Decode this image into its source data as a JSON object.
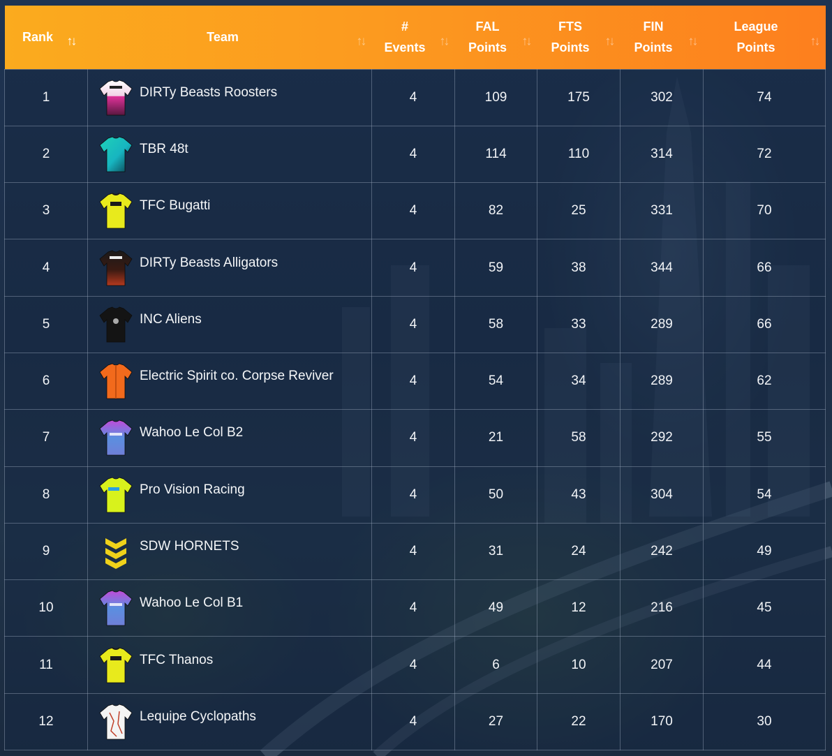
{
  "headers": {
    "rank": "Rank",
    "team": "Team",
    "events_1": "#",
    "events_2": "Events",
    "fal_1": "FAL",
    "fal_2": "Points",
    "fts_1": "FTS",
    "fts_2": "Points",
    "fin_1": "FIN",
    "fin_2": "Points",
    "league_1": "League",
    "league_2": "Points",
    "sort_glyph": "↑↓"
  },
  "colors": {
    "header_start": "#fbab1e",
    "header_end": "#fd7f1e"
  },
  "rows": [
    {
      "rank": "1",
      "team": "DIRTy Beasts Roosters",
      "events": "4",
      "fal": "109",
      "fts": "175",
      "fin": "302",
      "league": "74",
      "jersey_icon": "jersey-dirty-roosters-icon"
    },
    {
      "rank": "2",
      "team": "TBR 48t",
      "events": "4",
      "fal": "114",
      "fts": "110",
      "fin": "314",
      "league": "72",
      "jersey_icon": "jersey-tbr-icon"
    },
    {
      "rank": "3",
      "team": "TFC Bugatti",
      "events": "4",
      "fal": "82",
      "fts": "25",
      "fin": "331",
      "league": "70",
      "jersey_icon": "jersey-tfc-icon"
    },
    {
      "rank": "4",
      "team": "DIRTy Beasts Alligators",
      "events": "4",
      "fal": "59",
      "fts": "38",
      "fin": "344",
      "league": "66",
      "jersey_icon": "jersey-dirty-alligators-icon"
    },
    {
      "rank": "5",
      "team": "INC Aliens",
      "events": "4",
      "fal": "58",
      "fts": "33",
      "fin": "289",
      "league": "66",
      "jersey_icon": "jersey-inc-icon"
    },
    {
      "rank": "6",
      "team": "Electric Spirit co. Corpse Reviver",
      "events": "4",
      "fal": "54",
      "fts": "34",
      "fin": "289",
      "league": "62",
      "jersey_icon": "jersey-electric-spirit-icon"
    },
    {
      "rank": "7",
      "team": "Wahoo Le Col B2",
      "events": "4",
      "fal": "21",
      "fts": "58",
      "fin": "292",
      "league": "55",
      "jersey_icon": "jersey-wahoo-icon"
    },
    {
      "rank": "8",
      "team": "Pro Vision Racing",
      "events": "4",
      "fal": "50",
      "fts": "43",
      "fin": "304",
      "league": "54",
      "jersey_icon": "jersey-pro-vision-icon"
    },
    {
      "rank": "9",
      "team": "SDW HORNETS",
      "events": "4",
      "fal": "31",
      "fts": "24",
      "fin": "242",
      "league": "49",
      "jersey_icon": "jersey-hornets-icon"
    },
    {
      "rank": "10",
      "team": "Wahoo Le Col B1",
      "events": "4",
      "fal": "49",
      "fts": "12",
      "fin": "216",
      "league": "45",
      "jersey_icon": "jersey-wahoo-icon"
    },
    {
      "rank": "11",
      "team": "TFC Thanos",
      "events": "4",
      "fal": "6",
      "fts": "10",
      "fin": "207",
      "league": "44",
      "jersey_icon": "jersey-tfc-icon"
    },
    {
      "rank": "12",
      "team": "Lequipe Cyclopaths",
      "events": "4",
      "fal": "27",
      "fts": "22",
      "fin": "170",
      "league": "30",
      "jersey_icon": "jersey-lequipe-icon"
    }
  ]
}
